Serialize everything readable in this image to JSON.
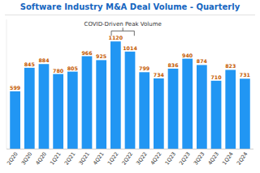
{
  "chart_data": {
    "type": "bar",
    "title": "Software Industry M&A Deal Volume - Quarterly",
    "categories": [
      "2Q20",
      "3Q20",
      "4Q20",
      "1Q21",
      "2Q21",
      "3Q21",
      "4Q21",
      "1Q22",
      "2Q22",
      "3Q22",
      "4Q22",
      "1Q23",
      "2Q23",
      "3Q23",
      "4Q23",
      "1Q24",
      "2Q24"
    ],
    "values": [
      599,
      845,
      884,
      780,
      805,
      966,
      925,
      1120,
      1014,
      799,
      734,
      836,
      940,
      874,
      710,
      823,
      731
    ],
    "color": "#2196f3",
    "ylim": [
      0,
      1350
    ],
    "data_labels": true,
    "tick_labels": "x",
    "grid": false,
    "annotations": [
      {
        "text": "COVID-Driven Peak Volume",
        "categories": [
          "1Q22",
          "2Q22"
        ]
      }
    ]
  }
}
